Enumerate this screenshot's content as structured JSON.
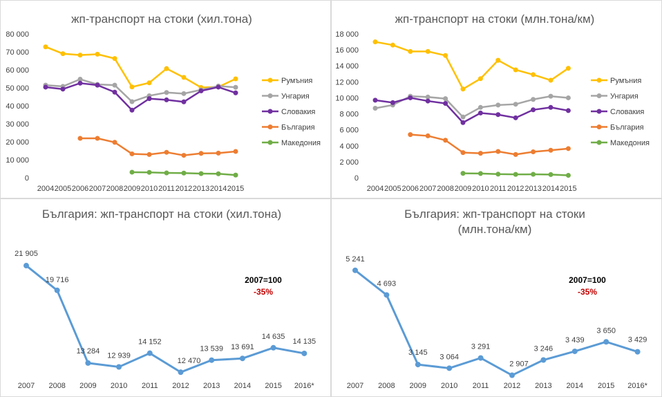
{
  "chart_data": [
    {
      "type": "line",
      "title": "жп-транспорт на стоки (хил.тона)",
      "categories": [
        "2004",
        "2005",
        "2006",
        "2007",
        "2008",
        "2009",
        "2010",
        "2011",
        "2012",
        "2013",
        "2014",
        "2015"
      ],
      "ylim": [
        0,
        80000
      ],
      "yticks": [
        "0",
        "10 000",
        "20 000",
        "30 000",
        "40 000",
        "50 000",
        "60 000",
        "70 000",
        "80 000"
      ],
      "grid": false,
      "legend": "right",
      "series": [
        {
          "name": "Румъния",
          "color": "#FFC000",
          "values": [
            72800,
            69000,
            68200,
            68700,
            66300,
            50500,
            52800,
            60700,
            55800,
            50200,
            50500,
            55000
          ]
        },
        {
          "name": "Унгария",
          "color": "#A5A5A5",
          "values": [
            51500,
            50800,
            54800,
            51900,
            51500,
            42300,
            45600,
            47400,
            46800,
            48900,
            51000,
            50300
          ]
        },
        {
          "name": "Словакия",
          "color": "#7030A0",
          "values": [
            50400,
            49300,
            52600,
            51500,
            47600,
            37600,
            44000,
            43300,
            42200,
            48300,
            50400,
            47200
          ]
        },
        {
          "name": "България",
          "color": "#ED7D31",
          "values": [
            null,
            null,
            21900,
            21905,
            19716,
            13284,
            12939,
            14152,
            12470,
            13539,
            13691,
            14635
          ]
        },
        {
          "name": "Македония",
          "color": "#70AD47",
          "values": [
            null,
            null,
            null,
            null,
            null,
            3100,
            3000,
            2700,
            2600,
            2300,
            2200,
            1500
          ]
        }
      ]
    },
    {
      "type": "line",
      "title": "жп-транспорт на стоки (млн.тона/км)",
      "categories": [
        "2004",
        "2005",
        "2006",
        "2007",
        "2008",
        "2009",
        "2010",
        "2011",
        "2012",
        "2013",
        "2014",
        "2015"
      ],
      "ylim": [
        0,
        18000
      ],
      "yticks": [
        "0",
        "2 000",
        "4 000",
        "6 000",
        "8 000",
        "10 000",
        "12 000",
        "14 000",
        "16 000",
        "18 000"
      ],
      "grid": false,
      "legend": "right",
      "series": [
        {
          "name": "Румъния",
          "color": "#FFC000",
          "values": [
            17000,
            16600,
            15800,
            15800,
            15300,
            11100,
            12400,
            14700,
            13500,
            12900,
            12200,
            13700
          ]
        },
        {
          "name": "Унгария",
          "color": "#A5A5A5",
          "values": [
            8700,
            9100,
            10200,
            10100,
            9900,
            7600,
            8800,
            9100,
            9200,
            9800,
            10200,
            10000
          ]
        },
        {
          "name": "Словакия",
          "color": "#7030A0",
          "values": [
            9700,
            9400,
            10000,
            9600,
            9300,
            6900,
            8100,
            7900,
            7500,
            8500,
            8800,
            8400
          ]
        },
        {
          "name": "България",
          "color": "#ED7D31",
          "values": [
            null,
            null,
            5400,
            5241,
            4693,
            3145,
            3064,
            3291,
            2907,
            3246,
            3439,
            3650
          ]
        },
        {
          "name": "Македония",
          "color": "#70AD47",
          "values": [
            null,
            null,
            null,
            null,
            null,
            550,
            530,
            450,
            420,
            430,
            400,
            300
          ]
        }
      ]
    },
    {
      "type": "line",
      "title": "България: жп-транспорт на стоки (хил.тона)",
      "categories": [
        "2007",
        "2008",
        "2009",
        "2010",
        "2011",
        "2012",
        "2013",
        "2014",
        "2015",
        "2016*"
      ],
      "values": [
        21905,
        19716,
        13284,
        12939,
        14152,
        12470,
        13539,
        13691,
        14635,
        14135
      ],
      "labels": [
        "21 905",
        "19 716",
        "13 284",
        "12 939",
        "14 152",
        "12 470",
        "13 539",
        "13 691",
        "14 635",
        "14 135"
      ],
      "ylim": [
        11500,
        23500
      ],
      "color": "#5B9BD5",
      "annotation": {
        "line1": "2007=100",
        "line2": "-35%"
      }
    },
    {
      "type": "line",
      "title": "България: жп-транспорт на стоки (млн.тона/км)",
      "categories": [
        "2007",
        "2008",
        "2009",
        "2010",
        "2011",
        "2012",
        "2013",
        "2014",
        "2015",
        "2016*"
      ],
      "values": [
        5241,
        4693,
        3145,
        3064,
        3291,
        2907,
        3246,
        3439,
        3650,
        3429
      ],
      "labels": [
        "5 241",
        "4 693",
        "3 145",
        "3 064",
        "3 291",
        "2 907",
        "3 246",
        "3 439",
        "3 650",
        "3 429"
      ],
      "ylim": [
        2700,
        5700
      ],
      "color": "#5B9BD5",
      "annotation": {
        "line1": "2007=100",
        "line2": "-35%"
      }
    }
  ]
}
